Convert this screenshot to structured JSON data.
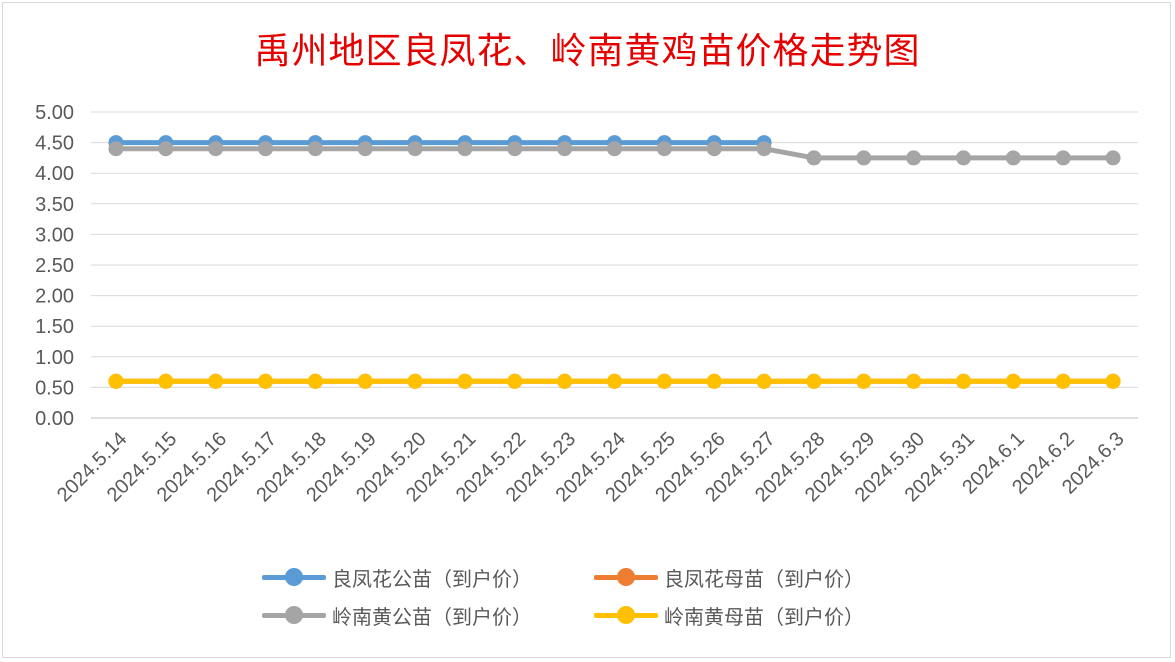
{
  "chart_data": {
    "type": "line",
    "title": "禹州地区良凤花、岭南黄鸡苗价格走势图",
    "categories": [
      "2024.5.14",
      "2024.5.15",
      "2024.5.16",
      "2024.5.17",
      "2024.5.18",
      "2024.5.19",
      "2024.5.20",
      "2024.5.21",
      "2024.5.22",
      "2024.5.23",
      "2024.5.24",
      "2024.5.25",
      "2024.5.26",
      "2024.5.27",
      "2024.5.28",
      "2024.5.29",
      "2024.5.30",
      "2024.5.31",
      "2024.6.1",
      "2024.6.2",
      "2024.6.3"
    ],
    "ylim": [
      0,
      5
    ],
    "yticks": [
      "0.00",
      "0.50",
      "1.00",
      "1.50",
      "2.00",
      "2.50",
      "3.00",
      "3.50",
      "4.00",
      "4.50",
      "5.00"
    ],
    "grid": true,
    "legend_position": "bottom",
    "series": [
      {
        "name": "良凤花公苗（到户价）",
        "color": "#5b9bd5",
        "values": [
          4.5,
          4.5,
          4.5,
          4.5,
          4.5,
          4.5,
          4.5,
          4.5,
          4.5,
          4.5,
          4.5,
          4.5,
          4.5,
          4.5,
          null,
          null,
          null,
          null,
          null,
          null,
          null
        ]
      },
      {
        "name": "良凤花母苗（到户价）",
        "color": "#ed7d31",
        "values": [
          0.6,
          0.6,
          0.6,
          0.6,
          0.6,
          0.6,
          0.6,
          0.6,
          0.6,
          0.6,
          0.6,
          0.6,
          0.6,
          0.6,
          0.6,
          0.6,
          0.6,
          0.6,
          0.6,
          0.6,
          0.6
        ]
      },
      {
        "name": "岭南黄公苗（到户价）",
        "color": "#a5a5a5",
        "values": [
          4.4,
          4.4,
          4.4,
          4.4,
          4.4,
          4.4,
          4.4,
          4.4,
          4.4,
          4.4,
          4.4,
          4.4,
          4.4,
          4.4,
          4.25,
          4.25,
          4.25,
          4.25,
          4.25,
          4.25,
          4.25
        ]
      },
      {
        "name": "岭南黄母苗（到户价）",
        "color": "#ffc000",
        "values": [
          0.6,
          0.6,
          0.6,
          0.6,
          0.6,
          0.6,
          0.6,
          0.6,
          0.6,
          0.6,
          0.6,
          0.6,
          0.6,
          0.6,
          0.6,
          0.6,
          0.6,
          0.6,
          0.6,
          0.6,
          0.6
        ]
      }
    ]
  }
}
